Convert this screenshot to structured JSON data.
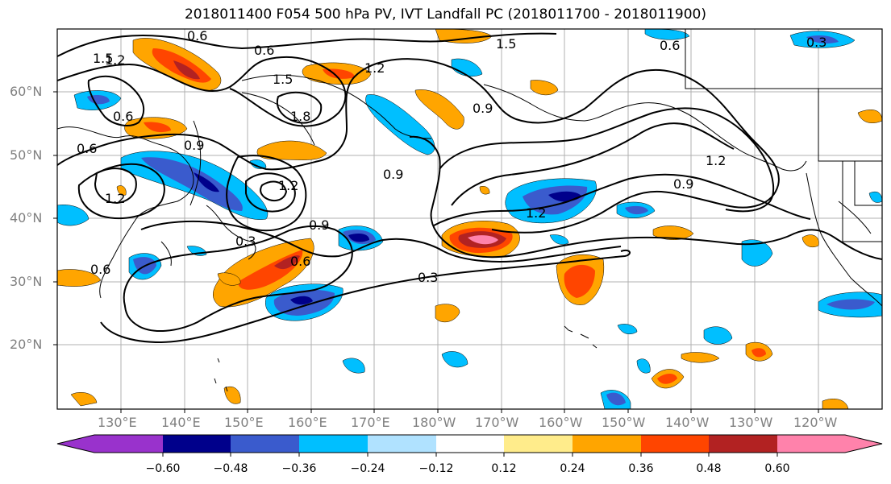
{
  "title": "2018011400 F054 500 hPa PV, IVT Landfall PC (2018011700 - 2018011900)",
  "lat_labels": [
    "60°N",
    "50°N",
    "40°N",
    "30°N",
    "20°N"
  ],
  "lon_labels": [
    "130°E",
    "140°E",
    "150°E",
    "160°E",
    "170°E",
    "180°W",
    "170°W",
    "160°W",
    "150°W",
    "140°W",
    "130°W",
    "120°W"
  ],
  "colorbar": {
    "tick_labels": [
      "−0.60",
      "−0.48",
      "−0.36",
      "−0.24",
      "−0.12",
      "0.12",
      "0.24",
      "0.36",
      "0.48",
      "0.60"
    ],
    "colors": [
      "#9932cc",
      "#00008b",
      "#3a5bcd",
      "#00bfff",
      "#b0e2ff",
      "#ffffff",
      "#ffec8b",
      "#ffa500",
      "#ff4500",
      "#b22222",
      "#ff82ab"
    ]
  },
  "contour_labels": [
    "1.5",
    "1.2",
    "0.6",
    "0.6",
    "1.5",
    "1.2",
    "1.5",
    "1.8",
    "0.6",
    "0.9",
    "0.6",
    "0.9",
    "0.6",
    "0.9",
    "1.2",
    "1.2",
    "0.9",
    "1.2",
    "0.9",
    "1.2",
    "0.3",
    "0.3",
    "0.6",
    "0.3",
    "0.6"
  ],
  "fill_colors": {
    "neg_dark": "#00008b",
    "neg_mid": "#3a5bcd",
    "neg_light": "#00bfff",
    "pos_light": "#ffa500",
    "pos_mid": "#ff4500",
    "pos_dark": "#b22222",
    "pos_max": "#ff82ab",
    "pale_yellow": "#ffec8b"
  }
}
